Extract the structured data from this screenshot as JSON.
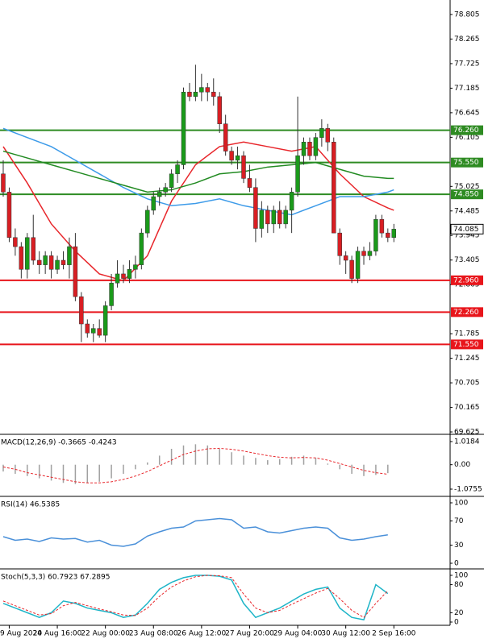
{
  "chart_data": [
    {
      "type": "candlestick",
      "categories": [
        null,
        "9 Aug 2024",
        null,
        null,
        null,
        null,
        null,
        null,
        null,
        "20 Aug 16:00",
        null,
        null,
        null,
        null,
        null,
        null,
        null,
        "22 Aug 00:00",
        null,
        null,
        null,
        null,
        null,
        null,
        null,
        "23 Aug 08:00",
        null,
        null,
        null,
        null,
        null,
        null,
        null,
        "26 Aug 12:00",
        null,
        null,
        null,
        null,
        null,
        null,
        null,
        "27 Aug 20:00",
        null,
        null,
        null,
        null,
        null,
        null,
        null,
        "29 Aug 04:00",
        null,
        null,
        null,
        null,
        null,
        null,
        null,
        "30 Aug 12:00",
        null,
        null,
        null,
        null,
        null,
        null,
        null,
        "2 Sep 16:00"
      ],
      "open": [
        75.3,
        74.9,
        73.9,
        73.7,
        73.2,
        73.9,
        73.4,
        73.3,
        73.5,
        73.2,
        73.4,
        73.3,
        73.7,
        72.6,
        72.0,
        71.8,
        71.9,
        71.75,
        72.4,
        72.9,
        73.1,
        73.0,
        73.2,
        73.3,
        74.0,
        74.5,
        74.8,
        74.9,
        75.0,
        75.3,
        75.5,
        77.1,
        77.0,
        77.1,
        77.2,
        77.1,
        77.0,
        76.4,
        75.8,
        75.6,
        75.7,
        75.2,
        75.0,
        74.1,
        74.5,
        74.2,
        74.5,
        74.2,
        74.5,
        74.9,
        75.7,
        76.0,
        75.7,
        76.1,
        76.3,
        76.0,
        74.0,
        73.5,
        73.4,
        73.0,
        73.6,
        73.5,
        73.6,
        74.3,
        74.0,
        73.9
      ],
      "high": [
        75.6,
        75.0,
        74.1,
        73.8,
        74.0,
        74.4,
        73.6,
        73.6,
        73.6,
        73.5,
        73.6,
        73.9,
        74.0,
        72.7,
        72.1,
        72.0,
        72.1,
        72.5,
        73.1,
        73.4,
        73.3,
        73.4,
        73.5,
        74.1,
        74.6,
        74.9,
        75.0,
        75.1,
        75.4,
        75.6,
        77.2,
        77.3,
        77.7,
        77.5,
        77.3,
        77.4,
        77.1,
        76.6,
        75.9,
        75.9,
        75.8,
        75.5,
        75.2,
        74.7,
        74.6,
        74.6,
        74.7,
        74.6,
        75.0,
        77.0,
        76.1,
        76.1,
        76.2,
        76.5,
        76.4,
        76.1,
        74.1,
        73.6,
        73.5,
        73.7,
        73.7,
        73.8,
        74.4,
        74.4,
        74.1,
        74.2
      ],
      "low": [
        74.8,
        73.8,
        73.5,
        73.0,
        73.0,
        73.3,
        73.1,
        73.1,
        73.0,
        73.1,
        73.2,
        73.0,
        72.5,
        71.6,
        71.7,
        71.6,
        71.7,
        71.6,
        72.3,
        72.8,
        72.9,
        72.9,
        73.0,
        73.2,
        73.9,
        74.4,
        74.6,
        74.8,
        74.9,
        75.1,
        75.4,
        76.9,
        76.9,
        76.9,
        76.9,
        76.8,
        76.2,
        75.7,
        75.5,
        75.4,
        75.1,
        74.9,
        73.8,
        73.9,
        74.0,
        74.0,
        74.1,
        74.1,
        74.0,
        74.8,
        75.5,
        75.6,
        75.6,
        75.9,
        75.8,
        74.0,
        73.3,
        73.1,
        72.9,
        72.9,
        73.3,
        73.4,
        73.5,
        73.9,
        73.8,
        73.8
      ],
      "close": [
        74.9,
        73.9,
        73.7,
        73.2,
        73.9,
        73.4,
        73.3,
        73.5,
        73.2,
        73.4,
        73.3,
        73.7,
        72.6,
        72.0,
        71.8,
        71.9,
        71.75,
        72.4,
        72.9,
        73.1,
        73.0,
        73.2,
        73.3,
        74.0,
        74.5,
        74.8,
        74.9,
        75.0,
        75.3,
        75.5,
        77.1,
        77.0,
        77.1,
        77.2,
        77.1,
        77.0,
        76.4,
        75.8,
        75.6,
        75.7,
        75.2,
        75.0,
        74.1,
        74.5,
        74.2,
        74.5,
        74.2,
        74.5,
        74.9,
        75.7,
        76.0,
        75.7,
        76.1,
        76.3,
        76.0,
        74.0,
        73.5,
        73.4,
        73.0,
        73.6,
        73.5,
        73.6,
        74.3,
        74.0,
        73.9,
        74.085
      ],
      "up_color": "#1a9a1a",
      "down_color": "#d81e23",
      "series": [
        {
          "color": "#e8262b",
          "x": [
            0,
            4,
            8,
            12,
            16,
            20,
            24,
            28,
            32,
            36,
            40,
            44,
            48,
            52,
            56,
            60,
            64,
            65
          ],
          "values": [
            75.9,
            75.1,
            74.2,
            73.6,
            73.1,
            72.95,
            73.5,
            74.7,
            75.5,
            75.9,
            76.0,
            75.9,
            75.8,
            75.9,
            75.3,
            74.8,
            74.55,
            74.5
          ]
        },
        {
          "color": "#3d9be9",
          "x": [
            0,
            4,
            8,
            12,
            16,
            20,
            24,
            28,
            32,
            36,
            40,
            44,
            48,
            52,
            56,
            60,
            64,
            65
          ],
          "values": [
            76.3,
            76.1,
            75.9,
            75.6,
            75.3,
            75.0,
            74.75,
            74.6,
            74.65,
            74.75,
            74.6,
            74.5,
            74.4,
            74.6,
            74.8,
            74.8,
            74.9,
            74.95
          ]
        },
        {
          "color": "#228b22",
          "x": [
            0,
            4,
            8,
            12,
            16,
            20,
            24,
            28,
            32,
            36,
            40,
            44,
            48,
            52,
            56,
            60,
            64,
            65
          ],
          "values": [
            75.8,
            75.65,
            75.5,
            75.35,
            75.2,
            75.05,
            74.9,
            74.95,
            75.1,
            75.3,
            75.35,
            75.45,
            75.5,
            75.55,
            75.4,
            75.25,
            75.2,
            75.2
          ]
        }
      ],
      "levels": [
        {
          "value": 76.26,
          "label": "76.260",
          "color": "#2e8b22"
        },
        {
          "value": 75.55,
          "label": "75.550",
          "color": "#2e8b22"
        },
        {
          "value": 74.85,
          "label": "74.850",
          "color": "#2e8b22"
        },
        {
          "value": 72.96,
          "label": "72.960",
          "color": "#e8151b"
        },
        {
          "value": 72.26,
          "label": "72.260",
          "color": "#e8151b"
        },
        {
          "value": 71.55,
          "label": "71.550",
          "color": "#e8151b"
        }
      ],
      "last_price": 74.085,
      "ylim": [
        69.59,
        79.124
      ],
      "yticks": [
        78.805,
        78.265,
        77.725,
        77.185,
        76.645,
        76.105,
        75.025,
        74.485,
        73.945,
        73.405,
        72.865,
        71.785,
        71.245,
        70.705,
        70.165,
        69.625
      ]
    },
    {
      "type": "indicator",
      "title": "MACD(12,26,9) -0.3665 -0.4243",
      "x": [
        0,
        2,
        4,
        6,
        8,
        10,
        12,
        14,
        16,
        18,
        20,
        22,
        24,
        26,
        28,
        30,
        32,
        34,
        36,
        38,
        40,
        42,
        44,
        46,
        48,
        50,
        52,
        54,
        56,
        58,
        60,
        62,
        64
      ],
      "series": [
        {
          "style": "histogram",
          "color": "#a0a0a0",
          "values": [
            -0.3,
            -0.4,
            -0.5,
            -0.6,
            -0.7,
            -0.8,
            -0.85,
            -0.8,
            -0.75,
            -0.6,
            -0.4,
            -0.2,
            0.1,
            0.4,
            0.7,
            0.85,
            0.9,
            0.85,
            0.7,
            0.55,
            0.4,
            0.3,
            0.2,
            0.25,
            0.35,
            0.4,
            0.3,
            0.05,
            -0.2,
            -0.4,
            -0.5,
            -0.45,
            -0.37
          ]
        },
        {
          "style": "dashed",
          "color": "#e8262b",
          "values": [
            -0.1,
            -0.2,
            -0.35,
            -0.45,
            -0.55,
            -0.65,
            -0.75,
            -0.8,
            -0.8,
            -0.75,
            -0.65,
            -0.5,
            -0.3,
            -0.05,
            0.2,
            0.45,
            0.6,
            0.7,
            0.72,
            0.68,
            0.6,
            0.5,
            0.4,
            0.33,
            0.3,
            0.32,
            0.3,
            0.2,
            0.05,
            -0.1,
            -0.25,
            -0.35,
            -0.42
          ]
        }
      ],
      "ylim": [
        -1.359,
        1.267
      ],
      "yticks": [
        1.0184,
        {
          "value": 0,
          "label": "0.00"
        },
        -1.0755
      ]
    },
    {
      "type": "indicator",
      "title": "RSI(14) 46.5385",
      "x": [
        0,
        2,
        4,
        6,
        8,
        10,
        12,
        14,
        16,
        18,
        20,
        22,
        24,
        26,
        28,
        30,
        32,
        34,
        36,
        38,
        40,
        42,
        44,
        46,
        48,
        50,
        52,
        54,
        56,
        58,
        60,
        62,
        64
      ],
      "series": [
        {
          "style": "line",
          "color": "#4a90d9",
          "values": [
            44,
            38,
            40,
            36,
            42,
            40,
            41,
            35,
            38,
            30,
            28,
            32,
            45,
            52,
            58,
            60,
            70,
            72,
            74,
            72,
            58,
            60,
            52,
            50,
            54,
            58,
            60,
            58,
            42,
            38,
            40,
            44,
            47
          ]
        }
      ],
      "ylim": [
        -8,
        108
      ],
      "yticks": [
        100,
        70,
        30,
        0
      ]
    },
    {
      "type": "indicator",
      "title": "Stoch(5,3,3) 60.7923 67.2895",
      "x": [
        0,
        2,
        4,
        6,
        8,
        10,
        12,
        14,
        16,
        18,
        20,
        22,
        24,
        26,
        28,
        30,
        32,
        34,
        36,
        38,
        40,
        42,
        44,
        46,
        48,
        50,
        52,
        54,
        56,
        58,
        60,
        62,
        64
      ],
      "series": [
        {
          "style": "line",
          "color": "#1fb5c8",
          "values": [
            40,
            30,
            20,
            10,
            20,
            45,
            40,
            30,
            25,
            20,
            10,
            15,
            40,
            70,
            85,
            95,
            100,
            100,
            98,
            90,
            40,
            10,
            20,
            30,
            45,
            60,
            70,
            75,
            30,
            10,
            5,
            80,
            61
          ]
        },
        {
          "style": "dashed",
          "color": "#e8262b",
          "values": [
            45,
            35,
            25,
            15,
            18,
            35,
            42,
            35,
            28,
            22,
            15,
            14,
            30,
            55,
            75,
            88,
            97,
            100,
            99,
            95,
            60,
            30,
            20,
            25,
            38,
            50,
            62,
            72,
            50,
            25,
            10,
            40,
            67
          ]
        }
      ],
      "ylim": [
        -5.2,
        110.3
      ],
      "yticks": [
        100,
        80,
        20,
        0
      ]
    }
  ]
}
